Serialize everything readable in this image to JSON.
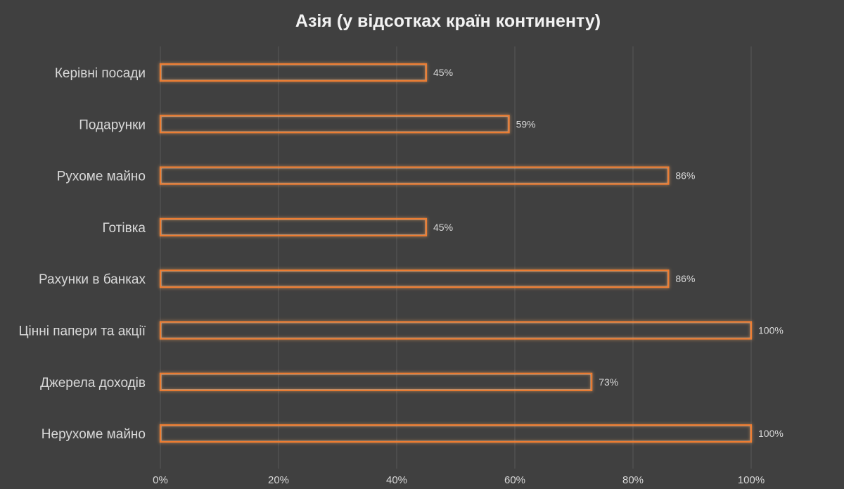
{
  "chart_data": {
    "type": "bar",
    "orientation": "horizontal",
    "title": "Азія (у відсотках країн континенту)",
    "categories": [
      "Керівні посади",
      "Подарунки",
      "Рухоме майно",
      "Готівка",
      "Рахунки в банках",
      "Цінні папери та акції",
      "Джерела доходів",
      "Нерухоме майно"
    ],
    "values": [
      45,
      59,
      86,
      45,
      86,
      100,
      73,
      100
    ],
    "value_labels": [
      "45%",
      "59%",
      "86%",
      "45%",
      "86%",
      "100%",
      "73%",
      "100%"
    ],
    "xlim": [
      0,
      100
    ],
    "xticks": [
      0,
      20,
      40,
      60,
      80,
      100
    ],
    "xtick_labels": [
      "0%",
      "20%",
      "40%",
      "60%",
      "80%",
      "100%"
    ],
    "grid": true,
    "legend": "none",
    "colors": {
      "background": "#404040",
      "bar_outline": "#ed7d31",
      "bar_glow": "#f4a460",
      "text": "#d9d9d9",
      "title": "#f2f2f2",
      "grid": "#595959"
    }
  }
}
